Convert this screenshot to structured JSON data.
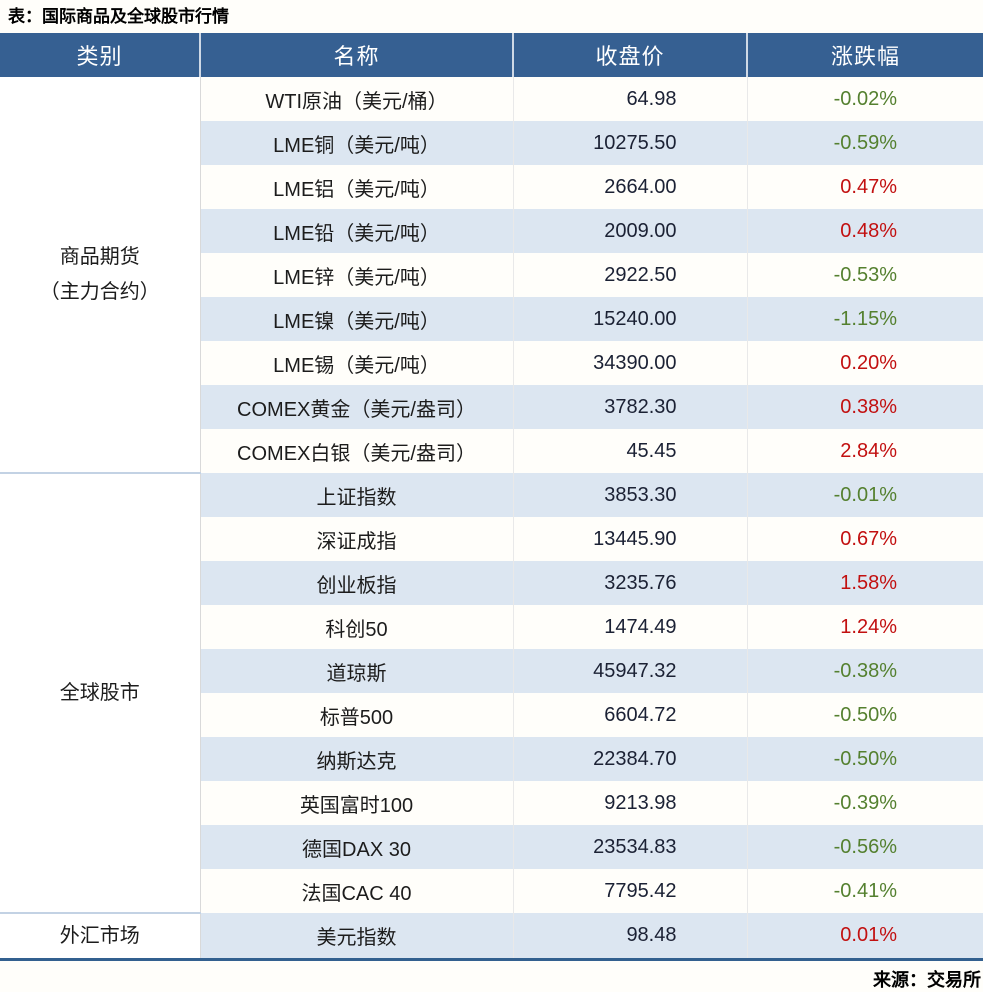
{
  "title": "表：国际商品及全球股市行情",
  "source": "来源：交易所",
  "colors": {
    "header_bg": "#366092",
    "stripe": "#DCE6F1",
    "up_red": "#C21010",
    "down_green": "#54802F",
    "bottom_border": "#33608F"
  },
  "table": {
    "headers": [
      "类别",
      "名称",
      "收盘价",
      "涨跌幅"
    ],
    "sections": [
      {
        "category": "商品期货\n（主力合约）",
        "rows": [
          {
            "name": "WTI原油（美元/桶）",
            "close": "64.98",
            "change": "-0.02%",
            "direction": "down"
          },
          {
            "name": "LME铜（美元/吨）",
            "close": "10275.50",
            "change": "-0.59%",
            "direction": "down"
          },
          {
            "name": "LME铝（美元/吨）",
            "close": "2664.00",
            "change": "0.47%",
            "direction": "up"
          },
          {
            "name": "LME铅（美元/吨）",
            "close": "2009.00",
            "change": "0.48%",
            "direction": "up"
          },
          {
            "name": "LME锌（美元/吨）",
            "close": "2922.50",
            "change": "-0.53%",
            "direction": "down"
          },
          {
            "name": "LME镍（美元/吨）",
            "close": "15240.00",
            "change": "-1.15%",
            "direction": "down"
          },
          {
            "name": "LME锡（美元/吨）",
            "close": "34390.00",
            "change": "0.20%",
            "direction": "up"
          },
          {
            "name": "COMEX黄金（美元/盎司）",
            "close": "3782.30",
            "change": "0.38%",
            "direction": "up"
          },
          {
            "name": "COMEX白银（美元/盎司）",
            "close": "45.45",
            "change": "2.84%",
            "direction": "up"
          }
        ]
      },
      {
        "category": "全球股市",
        "rows": [
          {
            "name": "上证指数",
            "close": "3853.30",
            "change": "-0.01%",
            "direction": "down"
          },
          {
            "name": "深证成指",
            "close": "13445.90",
            "change": "0.67%",
            "direction": "up"
          },
          {
            "name": "创业板指",
            "close": "3235.76",
            "change": "1.58%",
            "direction": "up"
          },
          {
            "name": "科创50",
            "close": "1474.49",
            "change": "1.24%",
            "direction": "up"
          },
          {
            "name": "道琼斯",
            "close": "45947.32",
            "change": "-0.38%",
            "direction": "down"
          },
          {
            "name": "标普500",
            "close": "6604.72",
            "change": "-0.50%",
            "direction": "down"
          },
          {
            "name": "纳斯达克",
            "close": "22384.70",
            "change": "-0.50%",
            "direction": "down"
          },
          {
            "name": "英国富时100",
            "close": "9213.98",
            "change": "-0.39%",
            "direction": "down"
          },
          {
            "name": "德国DAX 30",
            "close": "23534.83",
            "change": "-0.56%",
            "direction": "down"
          },
          {
            "name": "法国CAC 40",
            "close": "7795.42",
            "change": "-0.41%",
            "direction": "down"
          }
        ]
      },
      {
        "category": "外汇市场",
        "rows": [
          {
            "name": "美元指数",
            "close": "98.48",
            "change": "0.01%",
            "direction": "up"
          }
        ]
      }
    ]
  },
  "chart_data": {
    "type": "table",
    "title": "表：国际商品及全球股市行情",
    "columns": [
      "类别",
      "名称",
      "收盘价",
      "涨跌幅"
    ],
    "rows": [
      [
        "商品期货（主力合约）",
        "WTI原油（美元/桶）",
        64.98,
        "-0.02%"
      ],
      [
        "商品期货（主力合约）",
        "LME铜（美元/吨）",
        10275.5,
        "-0.59%"
      ],
      [
        "商品期货（主力合约）",
        "LME铝（美元/吨）",
        2664.0,
        "0.47%"
      ],
      [
        "商品期货（主力合约）",
        "LME铅（美元/吨）",
        2009.0,
        "0.48%"
      ],
      [
        "商品期货（主力合约）",
        "LME锌（美元/吨）",
        2922.5,
        "-0.53%"
      ],
      [
        "商品期货（主力合约）",
        "LME镍（美元/吨）",
        15240.0,
        "-1.15%"
      ],
      [
        "商品期货（主力合约）",
        "LME锡（美元/吨）",
        34390.0,
        "0.20%"
      ],
      [
        "商品期货（主力合约）",
        "COMEX黄金（美元/盎司）",
        3782.3,
        "0.38%"
      ],
      [
        "商品期货（主力合约）",
        "COMEX白银（美元/盎司）",
        45.45,
        "2.84%"
      ],
      [
        "全球股市",
        "上证指数",
        3853.3,
        "-0.01%"
      ],
      [
        "全球股市",
        "深证成指",
        13445.9,
        "0.67%"
      ],
      [
        "全球股市",
        "创业板指",
        3235.76,
        "1.58%"
      ],
      [
        "全球股市",
        "科创50",
        1474.49,
        "1.24%"
      ],
      [
        "全球股市",
        "道琼斯",
        45947.32,
        "-0.38%"
      ],
      [
        "全球股市",
        "标普500",
        6604.72,
        "-0.50%"
      ],
      [
        "全球股市",
        "纳斯达克",
        22384.7,
        "-0.50%"
      ],
      [
        "全球股市",
        "英国富时100",
        9213.98,
        "-0.39%"
      ],
      [
        "全球股市",
        "德国DAX 30",
        23534.83,
        "-0.56%"
      ],
      [
        "全球股市",
        "法国CAC 40",
        7795.42,
        "-0.41%"
      ],
      [
        "外汇市场",
        "美元指数",
        98.48,
        "0.01%"
      ]
    ]
  }
}
